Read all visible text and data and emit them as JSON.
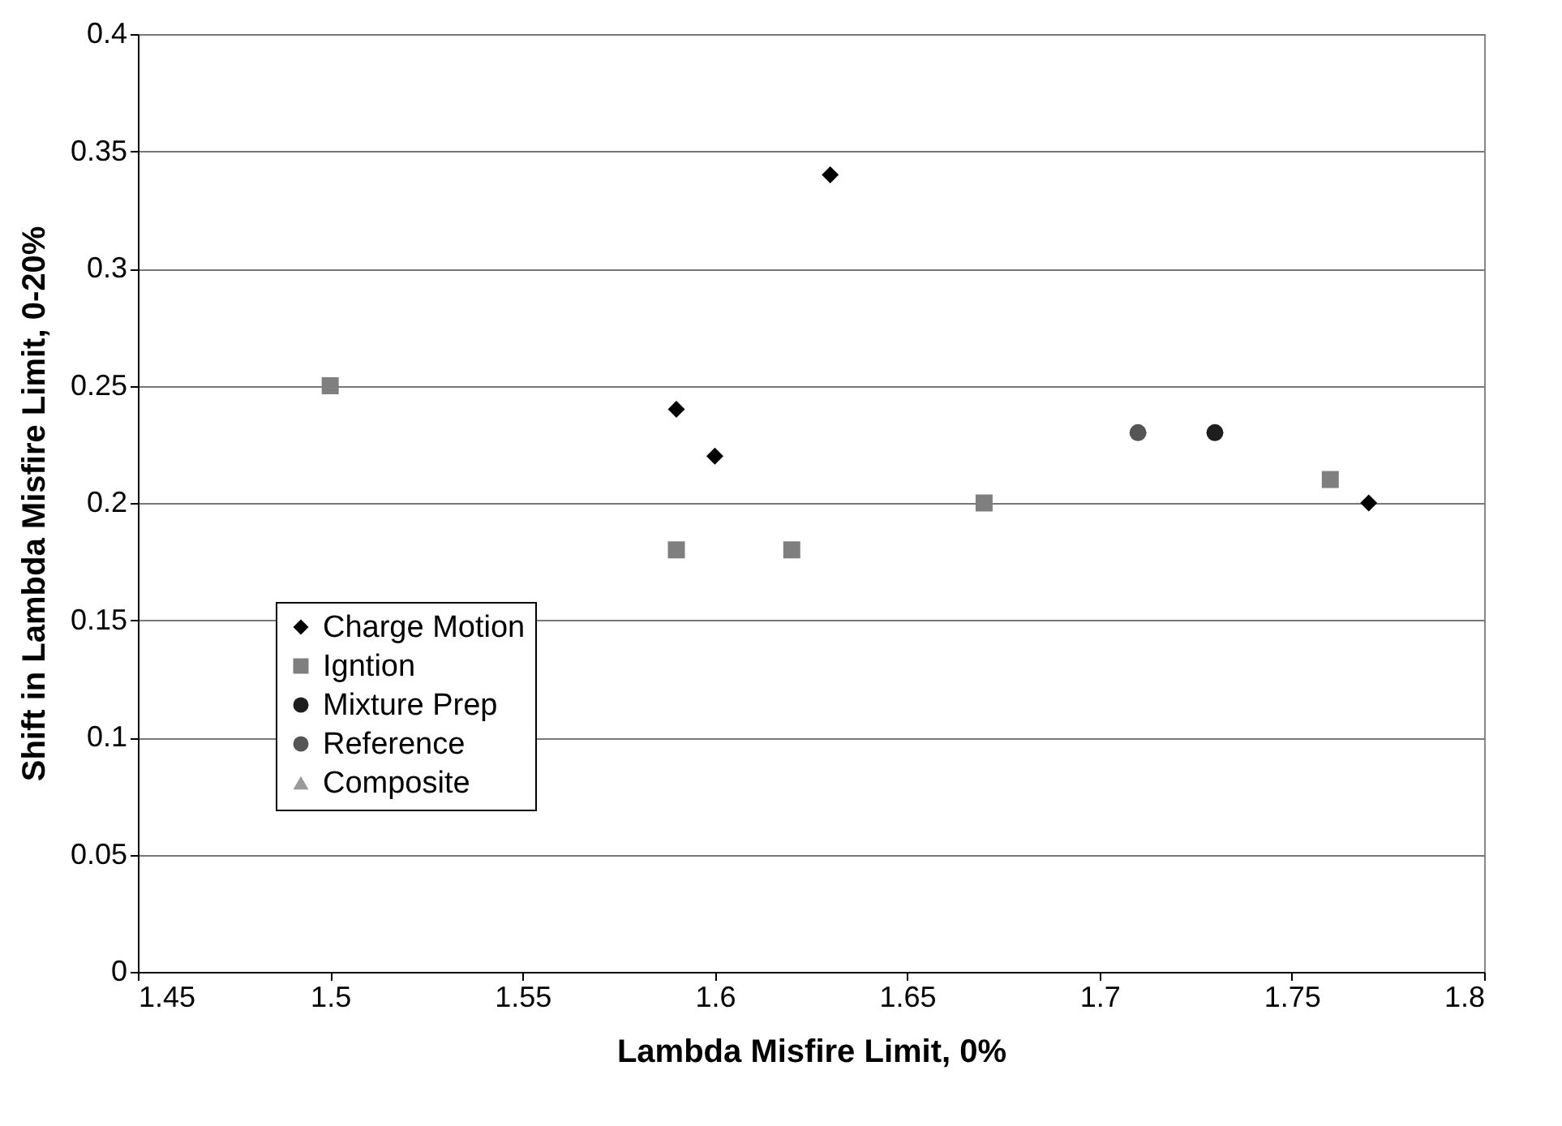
{
  "chart_data": {
    "type": "scatter",
    "xlabel": "Lambda Misfire Limit, 0%",
    "ylabel": "Shift in Lambda Misfire Limit, 0-20%",
    "xlim": [
      1.45,
      1.8
    ],
    "xticks": [
      1.45,
      1.5,
      1.55,
      1.6,
      1.65,
      1.7,
      1.75,
      1.8
    ],
    "ylim": [
      0,
      0.4
    ],
    "yticks": [
      0,
      0.05,
      0.1,
      0.15,
      0.2,
      0.25,
      0.3,
      0.35,
      0.4
    ],
    "grid": "y",
    "legend": "bottom left",
    "series": [
      {
        "name": "Charge Motion",
        "color": "#000000",
        "marker": "diamond",
        "x": [
          1.59,
          1.6,
          1.63,
          1.77
        ],
        "values": [
          0.24,
          0.22,
          0.34,
          0.2
        ]
      },
      {
        "name": "Igntion",
        "color": "#7f7f7f",
        "marker": "square",
        "x": [
          1.5,
          1.59,
          1.62,
          1.67,
          1.76
        ],
        "values": [
          0.25,
          0.18,
          0.18,
          0.2,
          0.21
        ]
      },
      {
        "name": "Mixture Prep",
        "color": "#1e1e1e",
        "marker": "circle",
        "x": [
          1.73
        ],
        "values": [
          0.23
        ]
      },
      {
        "name": "Reference",
        "color": "#555555",
        "marker": "circle",
        "x": [
          1.71
        ],
        "values": [
          0.23
        ]
      },
      {
        "name": "Composite",
        "color": "#9a9a9a",
        "marker": "triangle"
      }
    ]
  }
}
